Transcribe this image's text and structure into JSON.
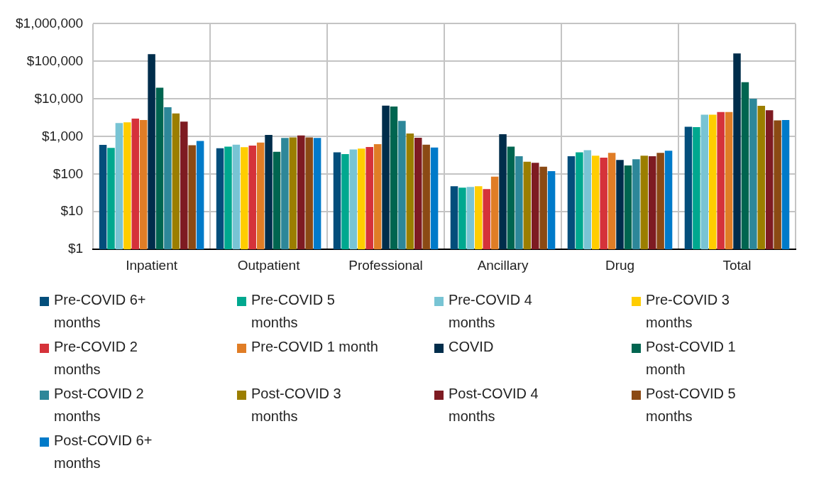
{
  "chart_data": {
    "type": "bar",
    "categories": [
      "Inpatient",
      "Outpatient",
      "Professional",
      "Ancillary",
      "Drug",
      "Total"
    ],
    "log": true,
    "ylim": [
      1,
      1000000
    ],
    "yticks": [
      {
        "value": 1,
        "label": "$1"
      },
      {
        "value": 10,
        "label": "$10"
      },
      {
        "value": 100,
        "label": "$100"
      },
      {
        "value": 1000,
        "label": "$1,000"
      },
      {
        "value": 10000,
        "label": "$10,000"
      },
      {
        "value": 100000,
        "label": "$100,000"
      },
      {
        "value": 1000000,
        "label": "$1,000,000"
      }
    ],
    "grid": true,
    "legend": "bottom",
    "series": [
      {
        "name": "Pre-COVID 6+ months",
        "color": "#034e7b",
        "values": [
          600,
          490,
          380,
          48,
          300,
          1820
        ]
      },
      {
        "name": "Pre-COVID 5 months",
        "color": "#00a88f",
        "values": [
          500,
          540,
          340,
          44,
          380,
          1790
        ]
      },
      {
        "name": "Pre-COVID 4 months",
        "color": "#78c4d4",
        "values": [
          2300,
          610,
          455,
          46,
          435,
          3800
        ]
      },
      {
        "name": "Pre-COVID 3 months",
        "color": "#ffcd00",
        "values": [
          2400,
          520,
          480,
          48,
          310,
          3800
        ]
      },
      {
        "name": "Pre-COVID 2 months",
        "color": "#d5323a",
        "values": [
          3000,
          575,
          525,
          40,
          275,
          4500
        ]
      },
      {
        "name": "Pre-COVID 1 month",
        "color": "#e07d26",
        "values": [
          2750,
          690,
          630,
          86,
          370,
          4500
        ]
      },
      {
        "name": "COVID",
        "color": "#002d4b",
        "values": [
          155000,
          1100,
          6650,
          1150,
          240,
          163000
        ]
      },
      {
        "name": "Post-COVID 1 month",
        "color": "#006550",
        "values": [
          20000,
          395,
          6300,
          540,
          170,
          28000
        ]
      },
      {
        "name": "Post-COVID 2 months",
        "color": "#2d8799",
        "values": [
          6000,
          920,
          2600,
          300,
          250,
          10200
        ]
      },
      {
        "name": "Post-COVID 3 months",
        "color": "#9b7e00",
        "values": [
          4100,
          950,
          1200,
          215,
          310,
          6600
        ]
      },
      {
        "name": "Post-COVID 4 months",
        "color": "#7e1b22",
        "values": [
          2500,
          1070,
          930,
          200,
          300,
          5000
        ]
      },
      {
        "name": "Post-COVID 5 months",
        "color": "#8b4a14",
        "values": [
          590,
          950,
          610,
          158,
          370,
          2700
        ]
      },
      {
        "name": "Post-COVID 6+ months",
        "color": "#007ac9",
        "values": [
          760,
          920,
          510,
          120,
          420,
          2750
        ]
      }
    ]
  }
}
